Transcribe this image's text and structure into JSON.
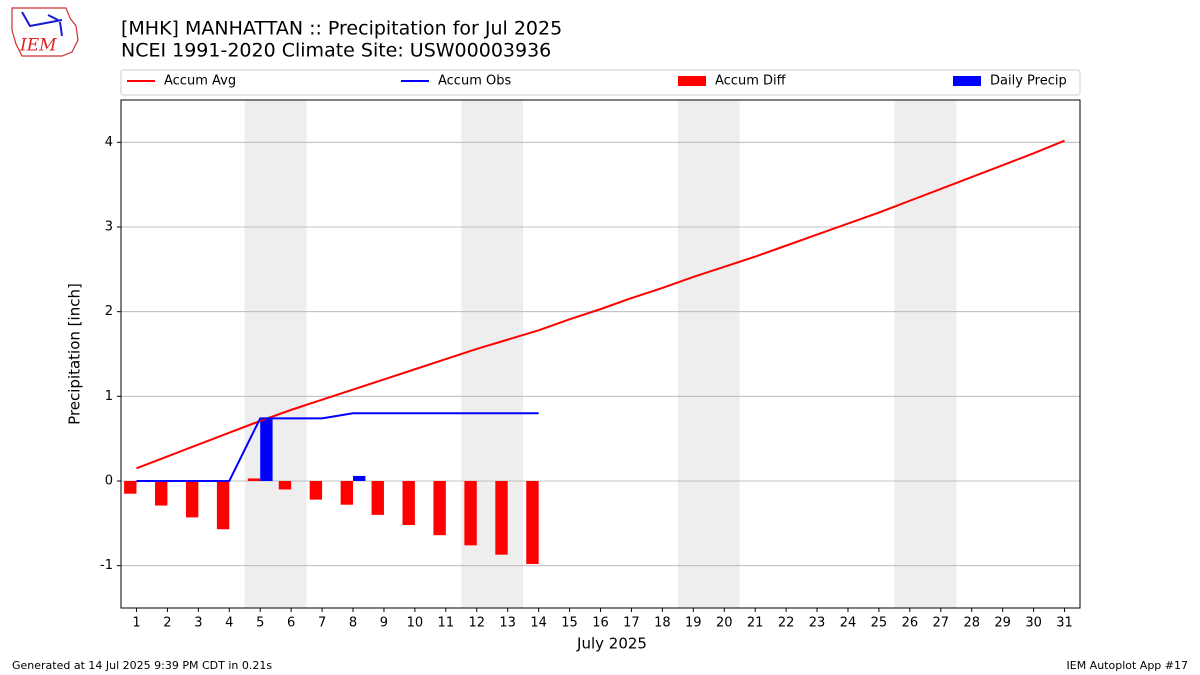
{
  "chart_data": {
    "type": "combo",
    "title": "[MHK] MANHATTAN :: Precipitation for Jul 2025",
    "subtitle": "NCEI 1991-2020 Climate Site: USW00003936",
    "y_label": "Precipitation [inch]",
    "x_label": "July 2025",
    "logo_text": "IEM",
    "footer_left": "Generated at 14 Jul 2025 9:39 PM CDT in 0.21s",
    "footer_right": "IEM Autoplot App #17",
    "x": [
      1,
      2,
      3,
      4,
      5,
      6,
      7,
      8,
      9,
      10,
      11,
      12,
      13,
      14,
      15,
      16,
      17,
      18,
      19,
      20,
      21,
      22,
      23,
      24,
      25,
      26,
      27,
      28,
      29,
      30,
      31
    ],
    "xlim": [
      0.5,
      31.5
    ],
    "xticks": [
      1,
      2,
      3,
      4,
      5,
      6,
      7,
      8,
      9,
      10,
      11,
      12,
      13,
      14,
      15,
      16,
      17,
      18,
      19,
      20,
      21,
      22,
      23,
      24,
      25,
      26,
      27,
      28,
      29,
      30,
      31
    ],
    "ylim": [
      -1.5,
      4.5
    ],
    "yticks": [
      -1,
      0,
      1,
      2,
      3,
      4
    ],
    "grid": true,
    "weekend_spans": [
      [
        4.5,
        6.5
      ],
      [
        11.5,
        13.5
      ],
      [
        18.5,
        20.5
      ],
      [
        25.5,
        27.5
      ]
    ],
    "legend_position": "top",
    "series": [
      {
        "name": "Accum Avg",
        "type": "line",
        "color": "#ff0000",
        "values": [
          0.15,
          0.29,
          0.43,
          0.57,
          0.71,
          0.84,
          0.96,
          1.08,
          1.2,
          1.32,
          1.44,
          1.56,
          1.67,
          1.78,
          1.91,
          2.03,
          2.16,
          2.28,
          2.41,
          2.53,
          2.65,
          2.78,
          2.91,
          3.04,
          3.17,
          3.31,
          3.45,
          3.59,
          3.73,
          3.87,
          4.02
        ]
      },
      {
        "name": "Accum Obs",
        "type": "line",
        "color": "#0000ff",
        "values": [
          0,
          0,
          0,
          0,
          0.74,
          0.74,
          0.74,
          0.8,
          0.8,
          0.8,
          0.8,
          0.8,
          0.8,
          0.8,
          null,
          null,
          null,
          null,
          null,
          null,
          null,
          null,
          null,
          null,
          null,
          null,
          null,
          null,
          null,
          null,
          null
        ]
      },
      {
        "name": "Accum Diff",
        "type": "bar",
        "offset": -0.4,
        "width": 0.4,
        "color": "#ff0000",
        "values": [
          -0.15,
          -0.29,
          -0.43,
          -0.57,
          0.03,
          -0.1,
          -0.22,
          -0.28,
          -0.4,
          -0.52,
          -0.64,
          -0.76,
          -0.87,
          -0.98,
          null,
          null,
          null,
          null,
          null,
          null,
          null,
          null,
          null,
          null,
          null,
          null,
          null,
          null,
          null,
          null,
          null
        ]
      },
      {
        "name": "Daily Precip",
        "type": "bar",
        "offset": 0,
        "width": 0.4,
        "color": "#0000ff",
        "values": [
          0,
          0,
          0,
          0,
          0.74,
          0,
          0,
          0.06,
          0,
          0,
          0,
          0,
          0,
          0,
          null,
          null,
          null,
          null,
          null,
          null,
          null,
          null,
          null,
          null,
          null,
          null,
          null,
          null,
          null,
          null,
          null
        ]
      }
    ]
  }
}
